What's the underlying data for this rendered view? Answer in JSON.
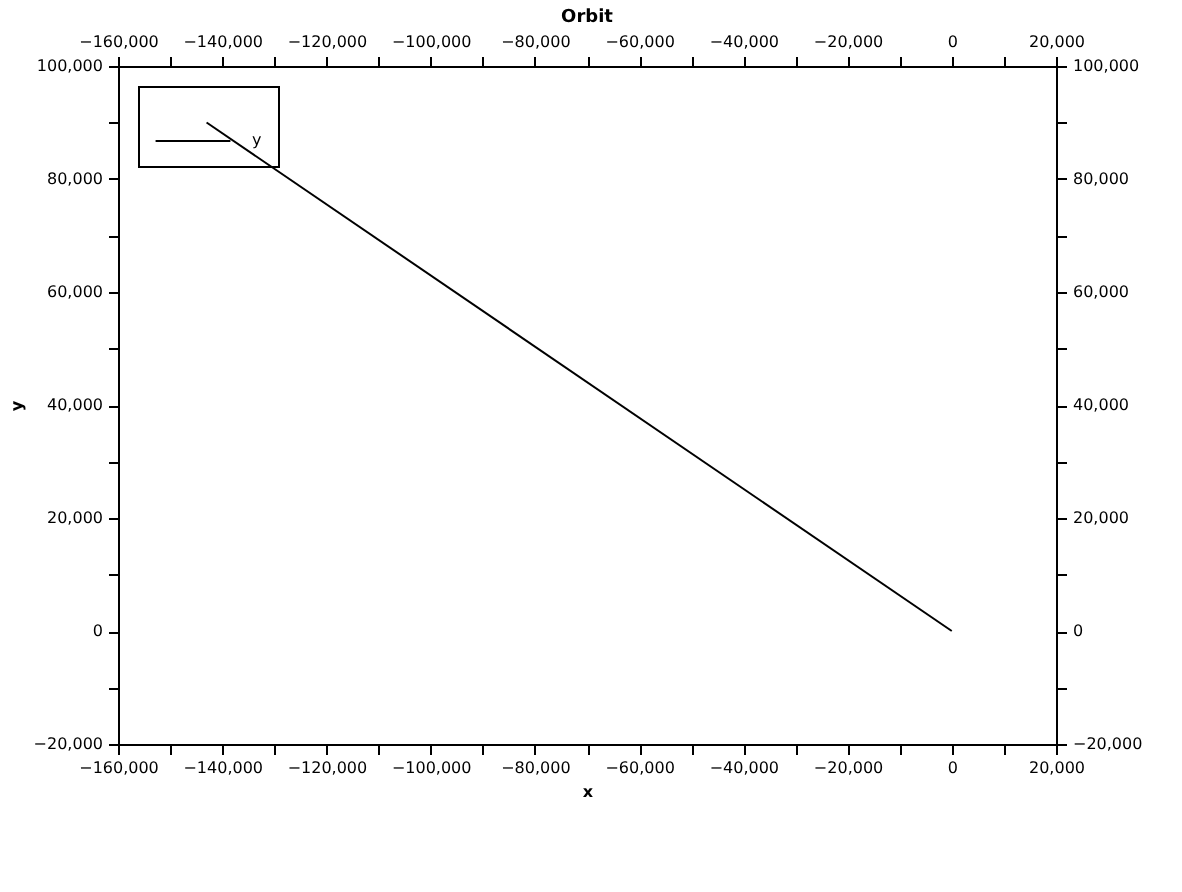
{
  "chart_data": {
    "type": "line",
    "title": "Orbit",
    "xlabel": "x",
    "ylabel": "y",
    "x": [
      0,
      -143000
    ],
    "series": [
      {
        "name": "y",
        "color": "#000000",
        "values": [
          0,
          90000
        ]
      }
    ],
    "xlim": [
      -160000,
      20000
    ],
    "ylim": [
      -20000,
      100000
    ],
    "xticks": [
      {
        "value": -160000,
        "label": "−160,000"
      },
      {
        "value": -150000,
        "label": null
      },
      {
        "value": -140000,
        "label": "−140,000"
      },
      {
        "value": -130000,
        "label": null
      },
      {
        "value": -120000,
        "label": "−120,000"
      },
      {
        "value": -110000,
        "label": null
      },
      {
        "value": -100000,
        "label": "−100,000"
      },
      {
        "value": -90000,
        "label": null
      },
      {
        "value": -80000,
        "label": "−80,000"
      },
      {
        "value": -70000,
        "label": null
      },
      {
        "value": -60000,
        "label": "−60,000"
      },
      {
        "value": -50000,
        "label": null
      },
      {
        "value": -40000,
        "label": "−40,000"
      },
      {
        "value": -30000,
        "label": null
      },
      {
        "value": -20000,
        "label": "−20,000"
      },
      {
        "value": -10000,
        "label": null
      },
      0,
      {
        "value": 10000,
        "label": null
      },
      {
        "value": 20000,
        "label": "20,000"
      }
    ],
    "x2lim": [
      -160000,
      20000
    ],
    "x2ticks": [
      {
        "value": -160000,
        "label": "−160,000"
      },
      {
        "value": -150000,
        "label": null
      },
      {
        "value": -140000,
        "label": "−140,000"
      },
      {
        "value": -130000,
        "label": null
      },
      {
        "value": -120000,
        "label": "−120,000"
      },
      {
        "value": -110000,
        "label": null
      },
      {
        "value": -100000,
        "label": "−100,000"
      },
      {
        "value": -90000,
        "label": null
      },
      {
        "value": -80000,
        "label": "−80,000"
      },
      {
        "value": -70000,
        "label": null
      },
      {
        "value": -60000,
        "label": "−60,000"
      },
      {
        "value": -50000,
        "label": null
      },
      {
        "value": -40000,
        "label": "−40,000"
      },
      {
        "value": -30000,
        "label": null
      },
      {
        "value": -20000,
        "label": "−20,000"
      },
      {
        "value": -10000,
        "label": null
      },
      0,
      {
        "value": 10000,
        "label": null
      },
      {
        "value": 20000,
        "label": "20,000"
      }
    ],
    "yticks": [
      {
        "value": -20000,
        "label": "−20,000"
      },
      {
        "value": -10000,
        "label": null
      },
      0,
      {
        "value": 10000,
        "label": null
      },
      {
        "value": 20000,
        "label": "20,000"
      },
      {
        "value": 30000,
        "label": null
      },
      {
        "value": 40000,
        "label": "40,000"
      },
      {
        "value": 50000,
        "label": null
      },
      {
        "value": 60000,
        "label": "60,000"
      },
      {
        "value": 70000,
        "label": null
      },
      {
        "value": 80000,
        "label": "80,000"
      },
      {
        "value": 90000,
        "label": null
      },
      {
        "value": 100000,
        "label": "100,000"
      }
    ],
    "y2lim": [
      -20000,
      100000
    ],
    "y2ticks": [
      {
        "value": -20000,
        "label": "−20,000"
      },
      {
        "value": -10000,
        "label": null
      },
      0,
      {
        "value": 10000,
        "label": null
      },
      {
        "value": 20000,
        "label": "20,000"
      },
      {
        "value": 30000,
        "label": null
      },
      {
        "value": 40000,
        "label": "40,000"
      },
      {
        "value": 50000,
        "label": null
      },
      {
        "value": 60000,
        "label": "60,000"
      },
      {
        "value": 70000,
        "label": null
      },
      {
        "value": 80000,
        "label": "80,000"
      },
      {
        "value": 90000,
        "label": null
      },
      {
        "value": 100000,
        "label": "100,000"
      }
    ],
    "grid": false,
    "legend": "top left",
    "marker": "none",
    "line_style": "solid"
  }
}
